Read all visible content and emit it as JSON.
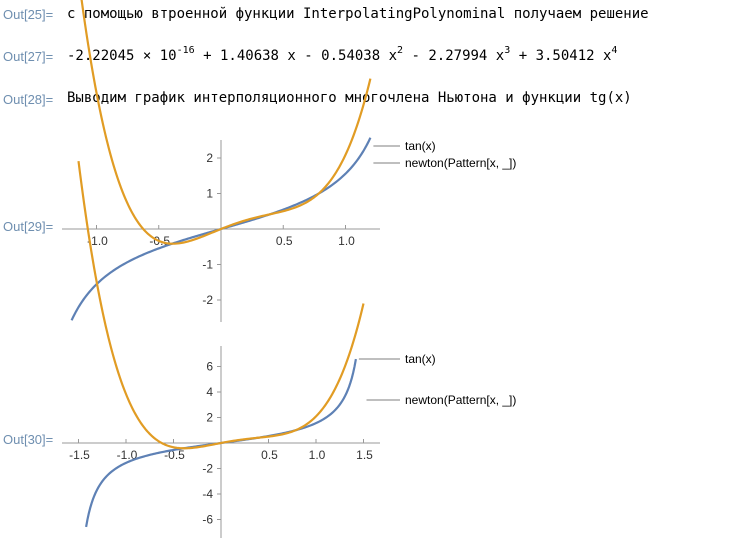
{
  "cells": [
    {
      "label": "Out[25]=",
      "text": "с помощью втроенной функции InterpolatingPolynominal получаем решение"
    },
    {
      "label": "Out[27]=",
      "terms": [
        "-2.22045",
        "×",
        "10",
        "-16",
        "+",
        "1.40638 x",
        "-",
        "0.54038 x",
        "2",
        "-",
        "2.27994 x",
        "3",
        "+",
        "3.50412 x",
        "4"
      ]
    },
    {
      "label": "Out[28]=",
      "text": "Выводим график интерполяционного многочлена Ньютона и функции tg(x)"
    },
    {
      "label": "Out[29]="
    },
    {
      "label": "Out[30]="
    }
  ],
  "colors": {
    "tan": "#5e81b5",
    "newton": "#e19c24",
    "axis": "#555555",
    "label": "#6f8fb0"
  },
  "chart_data": [
    {
      "type": "line",
      "title": "",
      "xlabel": "",
      "ylabel": "",
      "xlim": [
        -1.2,
        1.2
      ],
      "ylim": [
        -2.6,
        2.7
      ],
      "xticks": [
        "-1.0",
        "-0.5",
        "0.5",
        "1.0"
      ],
      "yticks": [
        "2",
        "1",
        "-1",
        "-2"
      ],
      "xtick_values": [
        -1.0,
        -0.5,
        0.5,
        1.0
      ],
      "ytick_values": [
        2,
        1,
        -1,
        -2
      ],
      "domain": [
        -1.2,
        1.2
      ],
      "series": [
        {
          "name": "tan(x)",
          "function": "tan",
          "color": "#5e81b5"
        },
        {
          "name": "newton(Pattern[x, _])",
          "function": "newton",
          "color": "#e19c24"
        }
      ]
    },
    {
      "type": "line",
      "title": "",
      "xlabel": "",
      "ylabel": "",
      "xlim": [
        -1.6,
        1.6
      ],
      "ylim": [
        -7.0,
        7.5
      ],
      "xticks": [
        "-1.5",
        "-1.0",
        "-0.5",
        "0.5",
        "1.0",
        "1.5"
      ],
      "yticks": [
        "6",
        "4",
        "2",
        "-2",
        "-4",
        "-6"
      ],
      "xtick_values": [
        -1.5,
        -1.0,
        -0.5,
        0.5,
        1.0,
        1.5
      ],
      "ytick_values": [
        6,
        4,
        2,
        -2,
        -4,
        -6
      ],
      "domain": [
        -1.5,
        1.5
      ],
      "tan_domain": [
        -1.42,
        1.42
      ],
      "series": [
        {
          "name": "tan(x)",
          "function": "tan",
          "color": "#5e81b5"
        },
        {
          "name": "newton(Pattern[x, _])",
          "function": "newton",
          "color": "#e19c24"
        }
      ]
    }
  ]
}
